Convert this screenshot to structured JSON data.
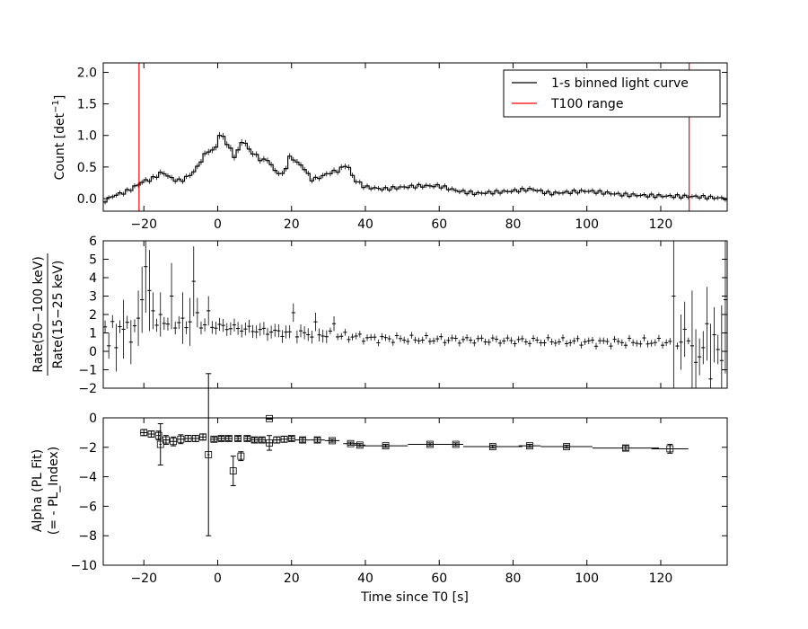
{
  "chart_data": [
    {
      "type": "line",
      "panel": "top",
      "ylabel_main": "Count [det",
      "ylabel_sup": "−1",
      "ylabel_close": "]",
      "xlim": [
        -31,
        138
      ],
      "ylim": [
        -0.2,
        2.15
      ],
      "xticks": [
        -20,
        0,
        20,
        40,
        60,
        80,
        100,
        120
      ],
      "yticks": [
        0.0,
        0.5,
        1.0,
        1.5,
        2.0
      ],
      "ytick_labels": [
        "0.0",
        "0.5",
        "1.0",
        "1.5",
        "2.0"
      ],
      "legend": {
        "position": "top-right",
        "entries": [
          {
            "label": "1-s binned light curve",
            "color": "#000000"
          },
          {
            "label": "T100 range",
            "color": "#ff0000"
          }
        ]
      },
      "vlines": [
        -21.3,
        127.7
      ],
      "vline_color": "#ff0000",
      "curve_knots": [
        [
          -31,
          -0.05
        ],
        [
          -28,
          0.05
        ],
        [
          -25,
          0.1
        ],
        [
          -22,
          0.2
        ],
        [
          -20,
          0.28
        ],
        [
          -18,
          0.3
        ],
        [
          -15,
          0.42
        ],
        [
          -12,
          0.3
        ],
        [
          -10,
          0.28
        ],
        [
          -8,
          0.35
        ],
        [
          -6,
          0.45
        ],
        [
          -4,
          0.65
        ],
        [
          -2,
          0.8
        ],
        [
          -1,
          0.7
        ],
        [
          0,
          0.95
        ],
        [
          1,
          1.05
        ],
        [
          2,
          0.9
        ],
        [
          3,
          0.85
        ],
        [
          4,
          0.7
        ],
        [
          5,
          0.65
        ],
        [
          6,
          0.85
        ],
        [
          7,
          0.95
        ],
        [
          8,
          0.8
        ],
        [
          10,
          0.7
        ],
        [
          12,
          0.6
        ],
        [
          14,
          0.62
        ],
        [
          15,
          0.45
        ],
        [
          17,
          0.4
        ],
        [
          18,
          0.35
        ],
        [
          19,
          0.65
        ],
        [
          20,
          0.65
        ],
        [
          22,
          0.55
        ],
        [
          24,
          0.45
        ],
        [
          25,
          0.3
        ],
        [
          27,
          0.32
        ],
        [
          30,
          0.4
        ],
        [
          33,
          0.45
        ],
        [
          35,
          0.55
        ],
        [
          37,
          0.3
        ],
        [
          40,
          0.18
        ],
        [
          45,
          0.15
        ],
        [
          50,
          0.18
        ],
        [
          55,
          0.2
        ],
        [
          60,
          0.2
        ],
        [
          65,
          0.12
        ],
        [
          70,
          0.08
        ],
        [
          80,
          0.12
        ],
        [
          85,
          0.15
        ],
        [
          90,
          0.08
        ],
        [
          100,
          0.12
        ],
        [
          110,
          0.06
        ],
        [
          120,
          0.04
        ],
        [
          130,
          0.03
        ],
        [
          138,
          0.0
        ]
      ]
    },
    {
      "type": "scatter",
      "panel": "middle",
      "ylabel_numerator": "Rate(50−100 keV)",
      "ylabel_denominator": "Rate(15−25 keV)",
      "xlim": [
        -31,
        138
      ],
      "ylim": [
        -2,
        6
      ],
      "xticks": [
        -20,
        0,
        20,
        40,
        60,
        80,
        100,
        120
      ],
      "yticks": [
        -2,
        -1,
        0,
        1,
        2,
        3,
        4,
        5,
        6
      ],
      "highlight_points": [
        [
          -30,
          0.3,
          0.7
        ],
        [
          -28,
          0.2,
          1.3
        ],
        [
          -26,
          1.2,
          1.6
        ],
        [
          -24,
          0.5,
          1.2
        ],
        [
          -22,
          1.8,
          1.5
        ],
        [
          -21,
          2.8,
          1.8
        ],
        [
          -20,
          4.6,
          2.5
        ],
        [
          -19,
          3.3,
          2.2
        ],
        [
          -18,
          2.2,
          1.0
        ],
        [
          -16,
          2.0,
          1.2
        ],
        [
          -13,
          3.0,
          1.8
        ],
        [
          -10,
          1.8,
          1.4
        ],
        [
          -8,
          1.6,
          1.3
        ],
        [
          -7,
          3.8,
          1.9
        ],
        [
          -6,
          2.1,
          0.8
        ],
        [
          -3,
          2.2,
          0.8
        ],
        [
          20,
          2.1,
          0.5
        ],
        [
          26,
          1.6,
          0.5
        ],
        [
          31,
          1.5,
          0.4
        ],
        [
          123,
          3.0,
          5.5
        ],
        [
          125,
          0.5,
          1.5
        ],
        [
          126,
          1.2,
          1.5
        ],
        [
          128,
          0.3,
          3.0
        ],
        [
          129,
          -0.6,
          1.8
        ],
        [
          130,
          -0.3,
          1.0
        ],
        [
          131,
          0.2,
          0.9
        ],
        [
          132,
          1.5,
          2.0
        ],
        [
          133,
          -1.5,
          3.0
        ],
        [
          134,
          0.9,
          1.5
        ],
        [
          135,
          0.1,
          0.8
        ],
        [
          136,
          -0.5,
          3.0
        ],
        [
          137,
          2.8,
          4.0
        ]
      ]
    },
    {
      "type": "scatter",
      "panel": "bottom",
      "ylabel_line1": "Alpha (PL Fit)",
      "ylabel_line2": "(= - PL_Index)",
      "xlabel": "Time since T0 [s]",
      "xlim": [
        -31,
        138
      ],
      "ylim": [
        -10,
        0
      ],
      "xticks": [
        -20,
        0,
        20,
        40,
        60,
        80,
        100,
        120
      ],
      "yticks": [
        -10,
        -8,
        -6,
        -4,
        -2,
        0
      ],
      "points": [
        {
          "x": -20,
          "xerr": 1.0,
          "y": -1.0,
          "yerr": 0.2
        },
        {
          "x": -18,
          "xerr": 1.0,
          "y": -1.1,
          "yerr": 0.2
        },
        {
          "x": -16,
          "xerr": 0.6,
          "y": -1.2,
          "yerr": 0.3
        },
        {
          "x": -15.5,
          "xerr": 0.3,
          "y": -1.8,
          "yerr": 1.4
        },
        {
          "x": -14,
          "xerr": 1.0,
          "y": -1.5,
          "yerr": 0.3
        },
        {
          "x": -12,
          "xerr": 1.0,
          "y": -1.6,
          "yerr": 0.3
        },
        {
          "x": -10,
          "xerr": 1.0,
          "y": -1.45,
          "yerr": 0.3
        },
        {
          "x": -8,
          "xerr": 1.0,
          "y": -1.4,
          "yerr": 0.2
        },
        {
          "x": -6,
          "xerr": 1.0,
          "y": -1.4,
          "yerr": 0.2
        },
        {
          "x": -4,
          "xerr": 1.0,
          "y": -1.3,
          "yerr": 0.2
        },
        {
          "x": -2.5,
          "xerr": 0.3,
          "y": -2.5,
          "yerr": 5.5
        },
        {
          "x": -1,
          "xerr": 1.0,
          "y": -1.45,
          "yerr": 0.15
        },
        {
          "x": 1,
          "xerr": 1.0,
          "y": -1.4,
          "yerr": 0.15
        },
        {
          "x": 3,
          "xerr": 1.0,
          "y": -1.4,
          "yerr": 0.15
        },
        {
          "x": 4.2,
          "xerr": 0.2,
          "y": -3.6,
          "yerr": 1.0
        },
        {
          "x": 5.5,
          "xerr": 0.8,
          "y": -1.4,
          "yerr": 0.15
        },
        {
          "x": 6.3,
          "xerr": 0.2,
          "y": -2.6,
          "yerr": 0.3
        },
        {
          "x": 8,
          "xerr": 1.0,
          "y": -1.4,
          "yerr": 0.15
        },
        {
          "x": 10,
          "xerr": 1.0,
          "y": -1.5,
          "yerr": 0.15
        },
        {
          "x": 12,
          "xerr": 1.0,
          "y": -1.5,
          "yerr": 0.15
        },
        {
          "x": 14,
          "xerr": 1.0,
          "y": -1.7,
          "yerr": 0.5
        },
        {
          "x": 14,
          "xerr": 1.0,
          "y": -0.05,
          "yerr": 0.05
        },
        {
          "x": 16,
          "xerr": 1.0,
          "y": -1.5,
          "yerr": 0.2
        },
        {
          "x": 18,
          "xerr": 1.0,
          "y": -1.45,
          "yerr": 0.2
        },
        {
          "x": 20,
          "xerr": 1.0,
          "y": -1.4,
          "yerr": 0.15
        },
        {
          "x": 23,
          "xerr": 2.0,
          "y": -1.5,
          "yerr": 0.15
        },
        {
          "x": 27,
          "xerr": 2.0,
          "y": -1.5,
          "yerr": 0.15
        },
        {
          "x": 31,
          "xerr": 2.0,
          "y": -1.55,
          "yerr": 0.1
        },
        {
          "x": 36,
          "xerr": 2.0,
          "y": -1.75,
          "yerr": 0.1
        },
        {
          "x": 38.5,
          "xerr": 1.5,
          "y": -1.85,
          "yerr": 0.1
        },
        {
          "x": 45.5,
          "xerr": 6.0,
          "y": -1.9,
          "yerr": 0.1
        },
        {
          "x": 57.5,
          "xerr": 6.0,
          "y": -1.8,
          "yerr": 0.1
        },
        {
          "x": 64.5,
          "xerr": 2.0,
          "y": -1.8,
          "yerr": 0.1
        },
        {
          "x": 74.5,
          "xerr": 8.0,
          "y": -1.95,
          "yerr": 0.1
        },
        {
          "x": 84.5,
          "xerr": 3.0,
          "y": -1.9,
          "yerr": 0.1
        },
        {
          "x": 94.5,
          "xerr": 7.0,
          "y": -1.95,
          "yerr": 0.1
        },
        {
          "x": 110.5,
          "xerr": 9.0,
          "y": -2.05,
          "yerr": 0.15
        },
        {
          "x": 122.5,
          "xerr": 5.0,
          "y": -2.1,
          "yerr": 0.3
        }
      ]
    }
  ]
}
